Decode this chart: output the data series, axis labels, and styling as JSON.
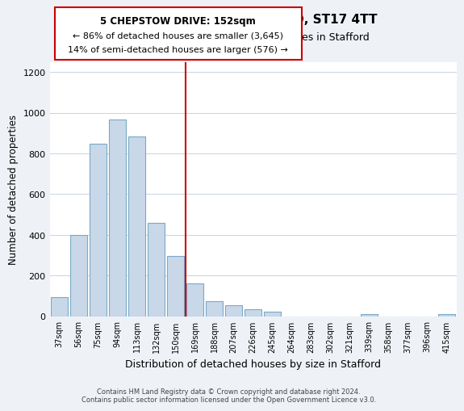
{
  "title": "5, CHEPSTOW DRIVE, STAFFORD, ST17 4TT",
  "subtitle": "Size of property relative to detached houses in Stafford",
  "xlabel": "Distribution of detached houses by size in Stafford",
  "ylabel": "Number of detached properties",
  "categories": [
    "37sqm",
    "56sqm",
    "75sqm",
    "94sqm",
    "113sqm",
    "132sqm",
    "150sqm",
    "169sqm",
    "188sqm",
    "207sqm",
    "226sqm",
    "245sqm",
    "264sqm",
    "283sqm",
    "302sqm",
    "321sqm",
    "339sqm",
    "358sqm",
    "377sqm",
    "396sqm",
    "415sqm"
  ],
  "values": [
    95,
    400,
    848,
    965,
    883,
    460,
    295,
    160,
    72,
    52,
    35,
    20,
    0,
    0,
    0,
    0,
    10,
    0,
    0,
    0,
    10
  ],
  "bar_color": "#c8d8e8",
  "bar_edgecolor": "#7aa8c8",
  "vline_x_index": 6,
  "vline_color": "#cc0000",
  "annotation_title": "5 CHEPSTOW DRIVE: 152sqm",
  "annotation_line1": "← 86% of detached houses are smaller (3,645)",
  "annotation_line2": "14% of semi-detached houses are larger (576) →",
  "annotation_box_edgecolor": "#cc0000",
  "footer_line1": "Contains HM Land Registry data © Crown copyright and database right 2024.",
  "footer_line2": "Contains public sector information licensed under the Open Government Licence v3.0.",
  "ylim": [
    0,
    1250
  ],
  "yticks": [
    0,
    200,
    400,
    600,
    800,
    1000,
    1200
  ],
  "bg_color": "#eef2f7",
  "plot_bg_color": "#ffffff",
  "grid_color": "#c8d4e0"
}
